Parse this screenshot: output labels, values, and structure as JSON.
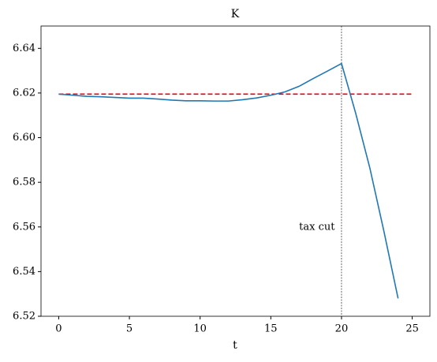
{
  "chart_data": {
    "type": "line",
    "title": "K",
    "xlabel": "t",
    "x": [
      0,
      1,
      2,
      3,
      4,
      5,
      6,
      7,
      8,
      9,
      10,
      11,
      12,
      13,
      14,
      15,
      16,
      17,
      18,
      19,
      20,
      21,
      22,
      23,
      24
    ],
    "series": [
      {
        "color": "#1f77b4",
        "values": [
          6.6195,
          6.619,
          6.6185,
          6.6183,
          6.618,
          6.6177,
          6.6177,
          6.6173,
          6.6168,
          6.6165,
          6.6165,
          6.6164,
          6.6164,
          6.617,
          6.6178,
          6.619,
          6.6205,
          6.623,
          6.6265,
          6.6298,
          6.6332,
          6.611,
          6.5865,
          6.558,
          6.528
        ]
      }
    ],
    "reference_line": {
      "y": 6.6195,
      "x": [
        0,
        25
      ],
      "color": "#e8000b"
    },
    "vline": {
      "x": 20,
      "color": "#000000"
    },
    "annotations": [
      {
        "text": "tax cut",
        "x": 17,
        "y": 6.56
      }
    ],
    "xlim": [
      -1.25,
      26.25
    ],
    "ylim": [
      6.52,
      6.65
    ],
    "xticks": [
      0,
      5,
      10,
      15,
      20,
      25
    ],
    "yticks": [
      6.52,
      6.54,
      6.56,
      6.58,
      {
        "value": 6.6,
        "label": "6.60"
      },
      6.62,
      6.64
    ]
  }
}
